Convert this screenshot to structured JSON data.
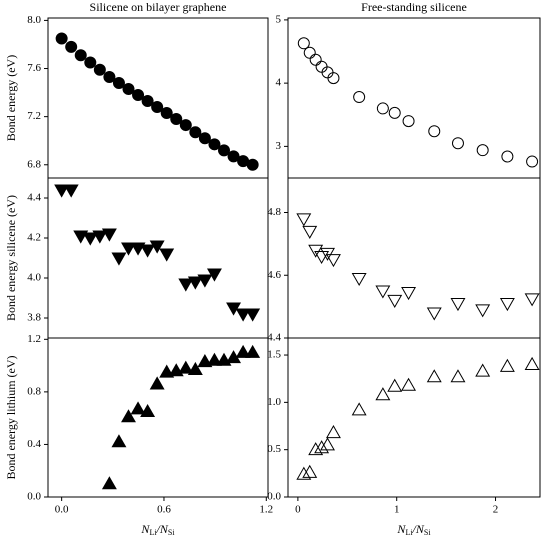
{
  "chart_data": [
    {
      "type": "scatter",
      "marker": "circle",
      "filled": true,
      "color": "#000000",
      "title": "Silicene on bilayer graphene",
      "ylabel": "Bond energy (eV)",
      "x": [
        0,
        0.056,
        0.112,
        0.168,
        0.224,
        0.28,
        0.336,
        0.392,
        0.448,
        0.504,
        0.56,
        0.616,
        0.672,
        0.728,
        0.784,
        0.84,
        0.896,
        0.952,
        1.008,
        1.064,
        1.12
      ],
      "values": [
        7.85,
        7.78,
        7.71,
        7.65,
        7.59,
        7.53,
        7.48,
        7.43,
        7.38,
        7.33,
        7.28,
        7.23,
        7.18,
        7.13,
        7.07,
        7.02,
        6.97,
        6.92,
        6.87,
        6.83,
        6.8
      ],
      "xlim": [
        -0.08,
        1.21
      ],
      "ylim": [
        6.69,
        8.02
      ],
      "yticks": [
        6.8,
        7.2,
        7.6,
        {
          "value": 8.0,
          "label": "8.0"
        }
      ]
    },
    {
      "type": "scatter",
      "marker": "triangle-down",
      "filled": true,
      "color": "#000000",
      "ylabel": "Bond energy silicene (eV)",
      "x": [
        0,
        0.056,
        0.112,
        0.168,
        0.224,
        0.28,
        0.336,
        0.392,
        0.448,
        0.504,
        0.56,
        0.616,
        0.728,
        0.784,
        0.84,
        0.896,
        1.008,
        1.064,
        1.12
      ],
      "values": [
        4.44,
        4.44,
        4.21,
        4.2,
        4.21,
        4.22,
        4.1,
        4.15,
        4.15,
        4.14,
        4.16,
        4.12,
        3.97,
        3.98,
        3.99,
        4.02,
        3.85,
        3.82,
        3.82
      ],
      "xlim": [
        -0.08,
        1.21
      ],
      "ylim": [
        3.7,
        4.5
      ],
      "yticks": [
        3.8,
        {
          "value": 4.0,
          "label": "4.0"
        },
        4.2,
        4.4
      ]
    },
    {
      "type": "scatter",
      "marker": "triangle-up",
      "filled": true,
      "color": "#000000",
      "ylabel": "Bond energy lithium (eV)",
      "xlabel_parts": [
        "N",
        "Li",
        "/N",
        "Si"
      ],
      "x": [
        0.28,
        0.336,
        0.392,
        0.448,
        0.504,
        0.56,
        0.616,
        0.672,
        0.728,
        0.784,
        0.84,
        0.896,
        0.952,
        1.008,
        1.064,
        1.12
      ],
      "values": [
        0.1,
        0.42,
        0.61,
        0.67,
        0.65,
        0.86,
        0.95,
        0.96,
        0.98,
        0.97,
        1.03,
        1.04,
        1.04,
        1.06,
        1.1,
        1.1
      ],
      "xlim": [
        -0.08,
        1.21
      ],
      "ylim": [
        0,
        1.21
      ],
      "xticks": [
        {
          "value": 0,
          "label": "0.0"
        },
        0.6,
        {
          "value": 1.2,
          "label": "1.2"
        }
      ],
      "yticks": [
        {
          "value": 0,
          "label": "0.0"
        },
        0.4,
        0.8,
        {
          "value": 1.2,
          "label": "1.2"
        }
      ]
    },
    {
      "type": "scatter",
      "marker": "circle",
      "filled": false,
      "color": "#000000",
      "title": "Free-standing silicene",
      "x": [
        0.06,
        0.12,
        0.18,
        0.24,
        0.3,
        0.36,
        0.62,
        0.86,
        0.98,
        1.12,
        1.38,
        1.62,
        1.87,
        2.12,
        2.37
      ],
      "values": [
        4.63,
        4.48,
        4.37,
        4.26,
        4.17,
        4.08,
        3.78,
        3.6,
        3.53,
        3.4,
        3.24,
        3.05,
        2.94,
        2.84,
        2.76
      ],
      "xlim": [
        -0.1,
        2.45
      ],
      "ylim": [
        2.5,
        5.03
      ],
      "yticks": [
        3,
        4,
        5
      ]
    },
    {
      "type": "scatter",
      "marker": "triangle-down",
      "filled": false,
      "color": "#000000",
      "x": [
        0.06,
        0.12,
        0.18,
        0.24,
        0.3,
        0.36,
        0.62,
        0.86,
        0.98,
        1.12,
        1.38,
        1.62,
        1.87,
        2.12,
        2.37
      ],
      "values": [
        4.78,
        4.74,
        4.68,
        4.66,
        4.67,
        4.65,
        4.59,
        4.55,
        4.52,
        4.545,
        4.48,
        4.51,
        4.49,
        4.51,
        4.525
      ],
      "xlim": [
        -0.1,
        2.45
      ],
      "ylim": [
        4.4,
        4.91
      ],
      "yticks": [
        4.4,
        4.6,
        4.8
      ]
    },
    {
      "type": "scatter",
      "marker": "triangle-up",
      "filled": false,
      "color": "#000000",
      "xlabel_parts": [
        "N",
        "Li",
        "/N",
        "Si"
      ],
      "x": [
        0.06,
        0.12,
        0.18,
        0.24,
        0.3,
        0.36,
        0.62,
        0.86,
        0.98,
        1.12,
        1.38,
        1.62,
        1.87,
        2.12,
        2.37
      ],
      "values": [
        0.24,
        0.26,
        0.5,
        0.52,
        0.55,
        0.68,
        0.92,
        1.08,
        1.17,
        1.18,
        1.27,
        1.27,
        1.33,
        1.38,
        1.4
      ],
      "xlim": [
        -0.1,
        2.45
      ],
      "ylim": [
        0,
        1.68
      ],
      "xticks": [
        0,
        1,
        2
      ],
      "yticks": [
        {
          "value": 0,
          "label": "0.0"
        },
        {
          "value": 0.5,
          "label": "0.5"
        },
        {
          "value": 1.0,
          "label": "1.0"
        },
        {
          "value": 1.5,
          "label": "1.5"
        }
      ]
    }
  ]
}
